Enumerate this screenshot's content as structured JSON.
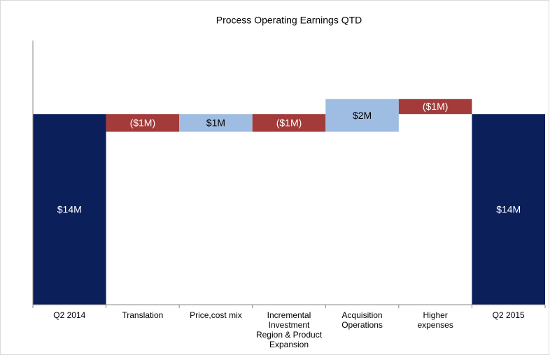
{
  "chart_data": {
    "type": "waterfall",
    "title": "Process Operating Earnings QTD",
    "categories": [
      "Q2 2014",
      "Translation",
      "Price,cost mix",
      "Incremental\nInvestment\nRegion & Product\nExpansion",
      "Acquisition\nOperations",
      "Higher\nexpenses",
      "Q2 2015"
    ],
    "values": [
      14,
      -1.3,
      1.3,
      -1.3,
      2.4,
      -1.1,
      14
    ],
    "value_labels": [
      "$14M",
      "($1M)",
      "$1M",
      "($1M)",
      "$2M",
      "($1M)",
      "$14M"
    ],
    "colors": [
      "#0b1f5b",
      "#a33b3b",
      "#9fbde2",
      "#a33b3b",
      "#9fbde2",
      "#a33b3b",
      "#0b1f5b"
    ],
    "ylim": [
      0,
      19.4
    ]
  }
}
